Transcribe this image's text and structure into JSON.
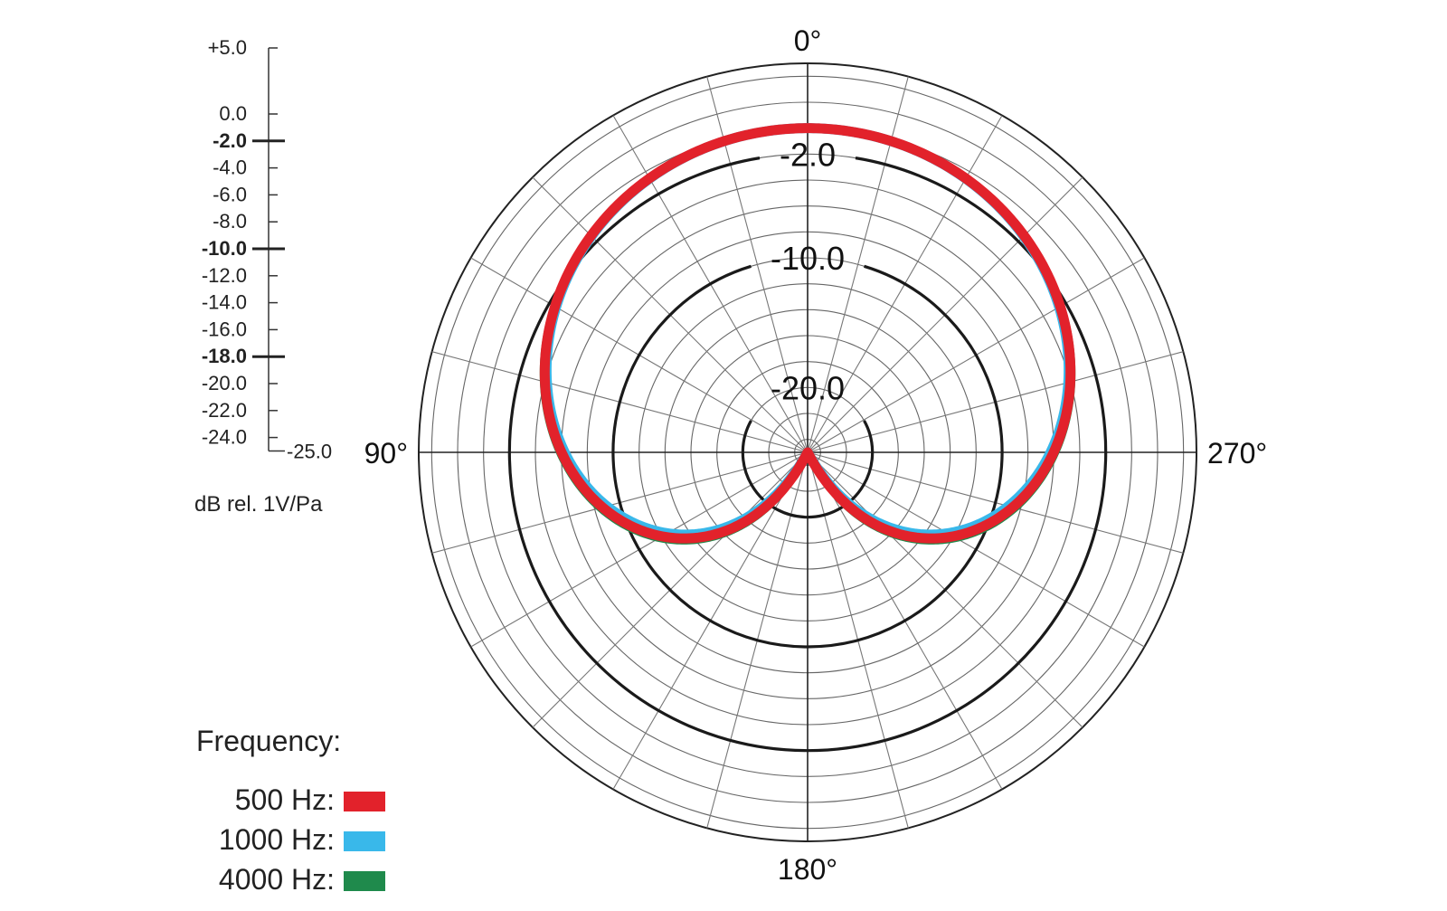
{
  "chart_data": {
    "type": "polar",
    "scale": {
      "labels": [
        "+5.0",
        "0.0",
        "-2.0",
        "-4.0",
        "-6.0",
        "-8.0",
        "-10.0",
        "-12.0",
        "-14.0",
        "-16.0",
        "-18.0",
        "-20.0",
        "-22.0",
        "-24.0"
      ],
      "values": [
        5,
        0,
        -2,
        -4,
        -6,
        -8,
        -10,
        -12,
        -14,
        -16,
        -18,
        -20,
        -22,
        -24
      ],
      "bold": [
        false,
        false,
        true,
        false,
        false,
        false,
        true,
        false,
        false,
        false,
        true,
        false,
        false,
        false
      ],
      "min_label": "-25.0",
      "min": -25,
      "max": 5,
      "unit": "dB rel. 1V/Pa"
    },
    "highlight_rings": [
      {
        "value": -2,
        "label": "-2.0"
      },
      {
        "value": -10,
        "label": "-10.0"
      },
      {
        "value": -20,
        "label": "-20.0"
      }
    ],
    "angle_labels": [
      {
        "angle": 0,
        "label": "0°"
      },
      {
        "angle": 90,
        "label": "90°"
      },
      {
        "angle": 180,
        "label": "180°"
      },
      {
        "angle": 270,
        "label": "270°"
      }
    ],
    "legend_title": "Frequency:",
    "series": [
      {
        "name": "500 Hz:",
        "color": "#e2222b",
        "pattern": "cardioid",
        "front_db": 0,
        "back_db": -25
      },
      {
        "name": "1000 Hz:",
        "color": "#39b8ea",
        "pattern": "cardioid",
        "front_db": 0,
        "back_db": -25
      },
      {
        "name": "4000 Hz:",
        "color": "#1f8a4c",
        "pattern": "cardioid",
        "front_db": 0,
        "back_db": -25
      }
    ]
  }
}
